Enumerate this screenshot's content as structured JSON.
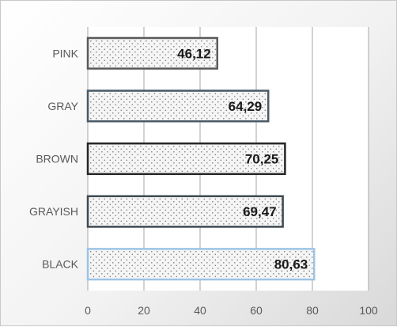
{
  "chart_data": {
    "type": "bar",
    "orientation": "horizontal",
    "title": "",
    "xlabel": "",
    "ylabel": "",
    "categories": [
      "PINK",
      "GRAY",
      "BROWN",
      "GRAYISH",
      "BLACK"
    ],
    "values": [
      46.12,
      64.29,
      70.25,
      69.47,
      80.63
    ],
    "value_labels": [
      "46,12",
      "64,29",
      "70,25",
      "69,47",
      "80,63"
    ],
    "xlim": [
      0,
      100
    ],
    "x_ticks": [
      0,
      20,
      40,
      60,
      80,
      100
    ],
    "x_tick_labels": [
      "0",
      "20",
      "40",
      "60",
      "80",
      "100"
    ],
    "grid": "vertical",
    "legend": "none",
    "bar_fill": "dotted pattern",
    "colors": {
      "bar_fill": "#f5f5f5",
      "bar_dots": "#7f7f7f",
      "bar_borders": [
        "#595959",
        "#4a5a66",
        "#262626",
        "#3f4a52",
        "#9dc3e6"
      ],
      "plot_background": "#ffffff",
      "grid_lines": "#a6a6a6",
      "label_text": "#595959",
      "value_text": "#1a1a1a"
    }
  }
}
